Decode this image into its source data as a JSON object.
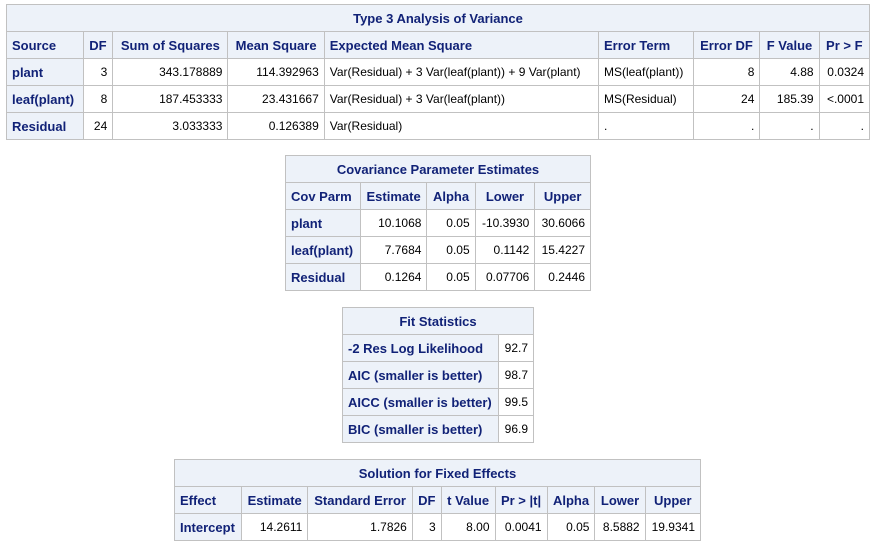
{
  "anova": {
    "title": "Type 3 Analysis of Variance",
    "headers": [
      "Source",
      "DF",
      "Sum of Squares",
      "Mean Square",
      "Expected Mean Square",
      "Error Term",
      "Error DF",
      "F Value",
      "Pr > F"
    ],
    "rows": [
      [
        "plant",
        "3",
        "343.178889",
        "114.392963",
        "Var(Residual) + 3 Var(leaf(plant)) + 9 Var(plant)",
        "MS(leaf(plant))",
        "8",
        "4.88",
        "0.0324"
      ],
      [
        "leaf(plant)",
        "8",
        "187.453333",
        "23.431667",
        "Var(Residual) + 3 Var(leaf(plant))",
        "MS(Residual)",
        "24",
        "185.39",
        "<.0001"
      ],
      [
        "Residual",
        "24",
        "3.033333",
        "0.126389",
        "Var(Residual)",
        ".",
        ".",
        ".",
        "."
      ]
    ]
  },
  "cov": {
    "title": "Covariance Parameter Estimates",
    "headers": [
      "Cov Parm",
      "Estimate",
      "Alpha",
      "Lower",
      "Upper"
    ],
    "rows": [
      [
        "plant",
        "10.1068",
        "0.05",
        "-10.3930",
        "30.6066"
      ],
      [
        "leaf(plant)",
        "7.7684",
        "0.05",
        "0.1142",
        "15.4227"
      ],
      [
        "Residual",
        "0.1264",
        "0.05",
        "0.07706",
        "0.2446"
      ]
    ]
  },
  "fit": {
    "title": "Fit Statistics",
    "rows": [
      [
        "-2 Res Log Likelihood",
        "92.7"
      ],
      [
        "AIC (smaller is better)",
        "98.7"
      ],
      [
        "AICC (smaller is better)",
        "99.5"
      ],
      [
        "BIC (smaller is better)",
        "96.9"
      ]
    ]
  },
  "fixed": {
    "title": "Solution for Fixed Effects",
    "headers": [
      "Effect",
      "Estimate",
      "Standard Error",
      "DF",
      "t Value",
      "Pr > |t|",
      "Alpha",
      "Lower",
      "Upper"
    ],
    "rows": [
      [
        "Intercept",
        "14.2611",
        "1.7826",
        "3",
        "8.00",
        "0.0041",
        "0.05",
        "8.5882",
        "19.9341"
      ]
    ]
  }
}
